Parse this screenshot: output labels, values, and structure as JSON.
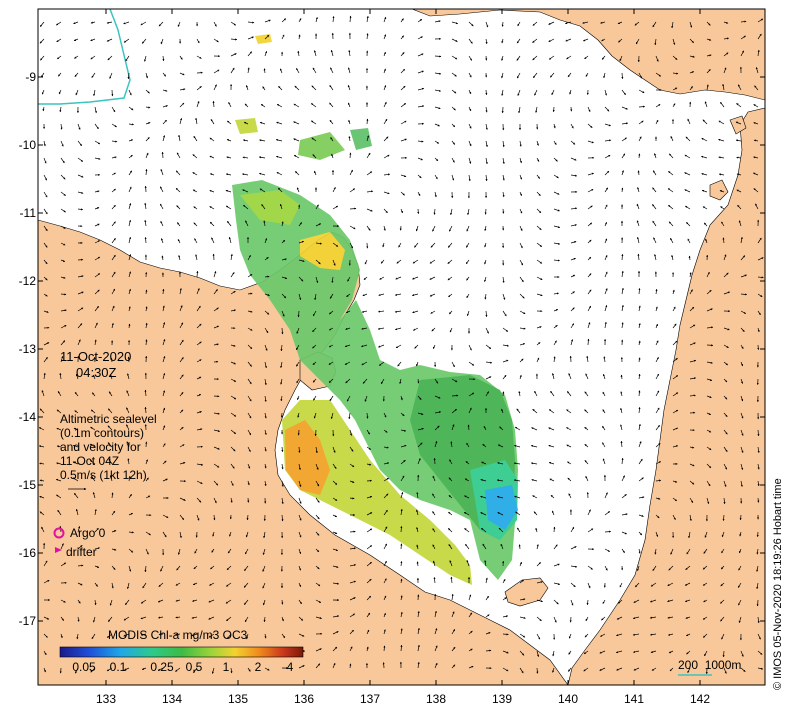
{
  "annotation": {
    "date": "11-Oct-2020",
    "time": "04:30Z",
    "legend_text": "Altimetric sealevel\n(0.1m contours)\nand velocity for\n11-Oct 04Z\n0.5m/s (1kt 12h)"
  },
  "markers": {
    "argo_label": "Argo 0",
    "drifter_label": "drifter"
  },
  "colorbar": {
    "title": "MODIS Chl-a mg/m3 OC3",
    "ticks": [
      "0.05",
      "0.1",
      "0.25",
      "0.5",
      "1",
      "2",
      "4"
    ]
  },
  "scale_bar": {
    "label": "200  1000m"
  },
  "axes": {
    "x_ticks": [
      "133",
      "134",
      "135",
      "136",
      "137",
      "138",
      "139",
      "140",
      "141",
      "142"
    ],
    "y_ticks": [
      "-9",
      "-10",
      "-11",
      "-12",
      "-13",
      "-14",
      "-15",
      "-16",
      "-17"
    ]
  },
  "credit": "© IMOS 05-Nov-2020 18:19:26 Hobart time",
  "colors": {
    "land": "#f9c89a",
    "ocean": "#ffffff",
    "argo": "#e0119e",
    "scale_line": "#3cc4c0"
  },
  "colorbar_colors": [
    "#1a1a8c",
    "#1f4fd8",
    "#1fa8e6",
    "#2ec98a",
    "#3dbb45",
    "#9ad43a",
    "#f3d230",
    "#f08a1c",
    "#c9361c",
    "#7a1a08"
  ]
}
